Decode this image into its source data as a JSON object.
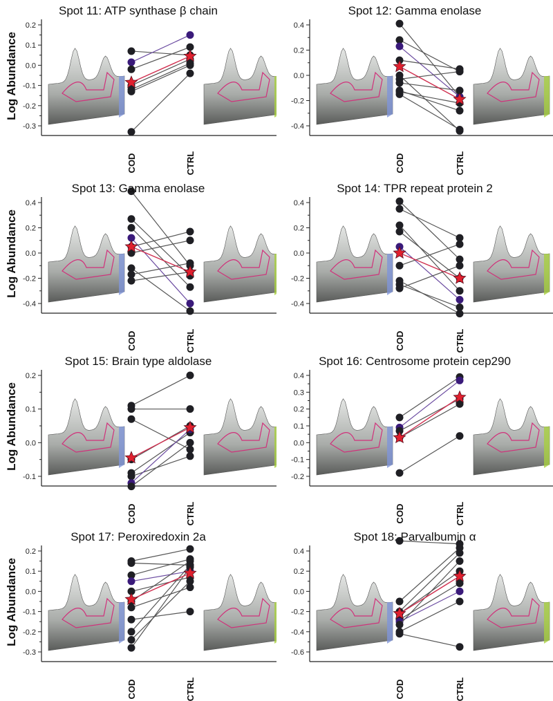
{
  "y_axis_label": "Log Abundance",
  "colors": {
    "subject": "#1f1f24",
    "highlight": "#3a1a7a",
    "mean": "#e0202e",
    "line": "#555555",
    "mean_line": "#d03050"
  },
  "chart_data": [
    {
      "type": "line",
      "title": "Spot 11: ATP synthase β chain",
      "categories": [
        "COD",
        "CTRL"
      ],
      "ylabel": "Log Abundance",
      "yticks": [
        "0.2",
        "0.1",
        "0.0",
        "-0.1",
        "-0.2",
        "-0.3"
      ],
      "ylim": [
        -0.3,
        0.2
      ],
      "series": [
        {
          "cod": 0.07,
          "ctrl": 0.05
        },
        {
          "cod": 0.015,
          "ctrl": 0.15,
          "highlight": true
        },
        {
          "cod": -0.02,
          "ctrl": 0.09
        },
        {
          "cod": -0.1,
          "ctrl": 0.03
        },
        {
          "cod": -0.12,
          "ctrl": 0.01
        },
        {
          "cod": -0.13,
          "ctrl": 0.0
        },
        {
          "cod": -0.33,
          "ctrl": -0.04
        }
      ],
      "mean": {
        "cod": -0.085,
        "ctrl": 0.045
      }
    },
    {
      "type": "line",
      "title": "Spot 12: Gamma enolase",
      "categories": [
        "COD",
        "CTRL"
      ],
      "ylabel": "",
      "yticks": [
        "0.4",
        "0.2",
        "0.0",
        "-0.2",
        "-0.4"
      ],
      "ylim": [
        -0.4,
        0.4
      ],
      "series": [
        {
          "cod": 0.41,
          "ctrl": -0.17
        },
        {
          "cod": 0.28,
          "ctrl": 0.03
        },
        {
          "cod": 0.23,
          "ctrl": -0.17,
          "highlight": true
        },
        {
          "cod": 0.12,
          "ctrl": 0.05
        },
        {
          "cod": 0.0,
          "ctrl": -0.44
        },
        {
          "cod": -0.03,
          "ctrl": 0.03
        },
        {
          "cod": -0.06,
          "ctrl": -0.12
        },
        {
          "cod": -0.12,
          "ctrl": -0.28
        },
        {
          "cod": -0.15,
          "ctrl": -0.43
        },
        {
          "cod": -0.13,
          "ctrl": -0.22
        }
      ],
      "mean": {
        "cod": 0.07,
        "ctrl": -0.19
      }
    },
    {
      "type": "line",
      "title": "Spot 13: Gamma enolase",
      "categories": [
        "COD",
        "CTRL"
      ],
      "ylabel": "Log Abundance",
      "yticks": [
        "0.4",
        "0.2",
        "0.0",
        "-0.2",
        "-0.4"
      ],
      "ylim": [
        -0.4,
        0.4
      ],
      "series": [
        {
          "cod": 0.49,
          "ctrl": -0.1
        },
        {
          "cod": 0.27,
          "ctrl": -0.18
        },
        {
          "cod": 0.2,
          "ctrl": -0.27
        },
        {
          "cod": 0.12,
          "ctrl": -0.4,
          "highlight": true
        },
        {
          "cod": 0.05,
          "ctrl": 0.17
        },
        {
          "cod": 0.0,
          "ctrl": 0.1
        },
        {
          "cod": -0.12,
          "ctrl": -0.46
        },
        {
          "cod": -0.17,
          "ctrl": -0.08
        },
        {
          "cod": -0.22,
          "ctrl": -0.15
        }
      ],
      "mean": {
        "cod": 0.05,
        "ctrl": -0.15
      }
    },
    {
      "type": "line",
      "title": "Spot 14: TPR repeat protein 2",
      "categories": [
        "COD",
        "CTRL"
      ],
      "ylabel": "",
      "yticks": [
        "0.4",
        "0.2",
        "0.0",
        "-0.2",
        "-0.4"
      ],
      "ylim": [
        -0.4,
        0.4
      ],
      "series": [
        {
          "cod": 0.41,
          "ctrl": -0.05
        },
        {
          "cod": 0.35,
          "ctrl": 0.12
        },
        {
          "cod": 0.22,
          "ctrl": -0.3
        },
        {
          "cod": 0.17,
          "ctrl": -0.2
        },
        {
          "cod": 0.05,
          "ctrl": -0.37,
          "highlight": true
        },
        {
          "cod": -0.1,
          "ctrl": 0.07
        },
        {
          "cod": -0.22,
          "ctrl": -0.48
        },
        {
          "cod": -0.25,
          "ctrl": -0.43
        },
        {
          "cod": -0.28,
          "ctrl": -0.1
        }
      ],
      "mean": {
        "cod": 0.0,
        "ctrl": -0.2
      }
    },
    {
      "type": "line",
      "title": "Spot 15: Brain type aldolase",
      "categories": [
        "COD",
        "CTRL"
      ],
      "ylabel": "Log Abundance",
      "yticks": [
        "0.2",
        "0.1",
        "0.0",
        "-0.1"
      ],
      "ylim": [
        -0.1,
        0.2
      ],
      "series": [
        {
          "cod": 0.11,
          "ctrl": 0.2
        },
        {
          "cod": 0.1,
          "ctrl": 0.1
        },
        {
          "cod": 0.07,
          "ctrl": -0.02
        },
        {
          "cod": -0.05,
          "ctrl": 0.05
        },
        {
          "cod": -0.09,
          "ctrl": 0.03
        },
        {
          "cod": -0.1,
          "ctrl": -0.04
        },
        {
          "cod": -0.12,
          "ctrl": 0.04,
          "highlight": true
        },
        {
          "cod": -0.13,
          "ctrl": 0.0
        }
      ],
      "mean": {
        "cod": -0.045,
        "ctrl": 0.045
      }
    },
    {
      "type": "line",
      "title": "Spot 16: Centrosome protein cep290",
      "categories": [
        "COD",
        "CTRL"
      ],
      "ylabel": "",
      "yticks": [
        "0.4",
        "0.3",
        "0.2",
        "0.1",
        "0.0",
        "-0.1",
        "-0.2"
      ],
      "ylim": [
        -0.2,
        0.4
      ],
      "series": [
        {
          "cod": 0.15,
          "ctrl": 0.39
        },
        {
          "cod": 0.09,
          "ctrl": 0.37,
          "highlight": true
        },
        {
          "cod": 0.07,
          "ctrl": 0.26
        },
        {
          "cod": 0.03,
          "ctrl": 0.23
        },
        {
          "cod": -0.18,
          "ctrl": 0.04
        }
      ],
      "mean": {
        "cod": 0.03,
        "ctrl": 0.27
      }
    },
    {
      "type": "line",
      "title": "Spot 17: Peroxiredoxin 2a",
      "categories": [
        "COD",
        "CTRL"
      ],
      "ylabel": "Log Abundance",
      "yticks": [
        "0.2",
        "0.1",
        "0.0",
        "-0.1",
        "-0.2",
        "-0.3"
      ],
      "ylim": [
        -0.3,
        0.2
      ],
      "series": [
        {
          "cod": 0.15,
          "ctrl": 0.21
        },
        {
          "cod": 0.14,
          "ctrl": 0.13
        },
        {
          "cod": 0.08,
          "ctrl": 0.16
        },
        {
          "cod": 0.05,
          "ctrl": 0.1,
          "highlight": true
        },
        {
          "cod": 0.0,
          "ctrl": 0.07
        },
        {
          "cod": -0.05,
          "ctrl": 0.15
        },
        {
          "cod": -0.08,
          "ctrl": 0.02
        },
        {
          "cod": -0.14,
          "ctrl": -0.1
        },
        {
          "cod": -0.2,
          "ctrl": 0.13
        },
        {
          "cod": -0.24,
          "ctrl": 0.05
        },
        {
          "cod": -0.28,
          "ctrl": 0.12
        }
      ],
      "mean": {
        "cod": -0.04,
        "ctrl": 0.09
      }
    },
    {
      "type": "line",
      "title": "Spot 18: Parvalbumin α",
      "categories": [
        "COD",
        "CTRL"
      ],
      "ylabel": "",
      "yticks": [
        "0.4",
        "0.2",
        "0.0",
        "-0.2",
        "-0.4",
        "-0.6"
      ],
      "ylim": [
        -0.6,
        0.4
      ],
      "series": [
        {
          "cod": 0.5,
          "ctrl": 0.47
        },
        {
          "cod": -0.1,
          "ctrl": 0.43
        },
        {
          "cod": -0.2,
          "ctrl": 0.38
        },
        {
          "cod": -0.22,
          "ctrl": 0.2
        },
        {
          "cod": -0.28,
          "ctrl": 0.08
        },
        {
          "cod": -0.3,
          "ctrl": 0.0,
          "highlight": true
        },
        {
          "cod": -0.33,
          "ctrl": 0.3
        },
        {
          "cod": -0.4,
          "ctrl": -0.1
        },
        {
          "cod": -0.42,
          "ctrl": -0.55
        }
      ],
      "mean": {
        "cod": -0.22,
        "ctrl": 0.15
      }
    }
  ]
}
